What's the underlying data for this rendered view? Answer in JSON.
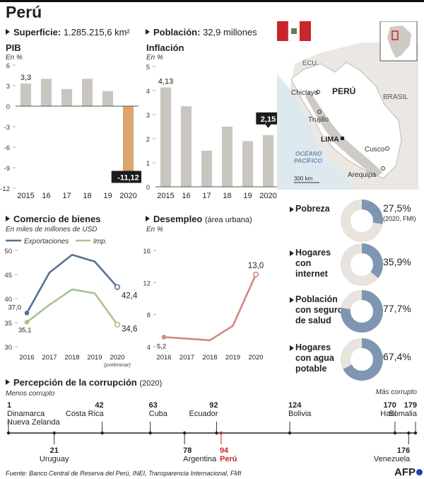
{
  "page": {
    "title": "Perú"
  },
  "stats": {
    "superficie_label": "Superficie:",
    "superficie_value": "1.285.215,6 km²",
    "poblacion_label": "Población:",
    "poblacion_value": "32,9 millones"
  },
  "colors": {
    "gray_bar": "#c9c6c0",
    "highlight_bar": "#d9a66f",
    "exports": "#56718f",
    "imports": "#a8c48f",
    "unemployment": "#d08a7e",
    "donut_fill": "#7f96b2",
    "donut_bg": "#e8e3dd",
    "peru_red": "#c8252c"
  },
  "chart_data": [
    {
      "id": "pib",
      "type": "bar",
      "title": "PIB",
      "unit": "En %",
      "categories": [
        "2015",
        "16",
        "17",
        "18",
        "19",
        "2020"
      ],
      "values": [
        3.3,
        4.0,
        2.5,
        4.0,
        2.2,
        -11.12
      ],
      "data_labels": [
        "3,3",
        "",
        "",
        "",
        "",
        "-11,12"
      ],
      "yticks": [
        "6",
        "3",
        "0",
        "-3",
        "-6",
        "-9",
        "-12"
      ],
      "ylim": [
        -12,
        6
      ]
    },
    {
      "id": "inflacion",
      "type": "bar",
      "title": "Inflación",
      "unit": "En %",
      "categories": [
        "2015",
        "16",
        "17",
        "18",
        "19",
        "2020"
      ],
      "values": [
        4.13,
        3.35,
        1.5,
        2.5,
        1.9,
        2.15
      ],
      "data_labels": [
        "4,13",
        "",
        "",
        "",
        "",
        "2,15"
      ],
      "yticks": [
        "5",
        "4",
        "3",
        "2",
        "1",
        "0"
      ],
      "ylim": [
        0,
        5
      ]
    },
    {
      "id": "comercio",
      "type": "line",
      "title": "Comercio de bienes",
      "unit": "En miles de millones de USD",
      "x": [
        "2016",
        "2017",
        "2018",
        "2019",
        "2020"
      ],
      "x_note": "(preliminar)",
      "series": [
        {
          "name": "Exportaciones",
          "values": [
            37.0,
            45.4,
            49.1,
            47.7,
            42.4
          ],
          "labels": [
            "37,0",
            "",
            "",
            "",
            "42,4"
          ]
        },
        {
          "name": "Imp.",
          "values": [
            35.1,
            38.7,
            41.9,
            41.1,
            34.6
          ],
          "labels": [
            "35,1",
            "",
            "",
            "",
            "34,6"
          ]
        }
      ],
      "yticks": [
        "50",
        "45",
        "40",
        "35",
        "30"
      ],
      "ylim": [
        30,
        50
      ]
    },
    {
      "id": "desempleo",
      "type": "line",
      "title": "Desempleo",
      "title_note": "(área urbana)",
      "unit": "En %",
      "x": [
        "2016",
        "2017",
        "2018",
        "2019",
        "2020"
      ],
      "series": [
        {
          "name": "Desempleo",
          "values": [
            5.2,
            5.0,
            4.8,
            6.6,
            13.0
          ],
          "labels": [
            "5,2",
            "",
            "",
            "",
            "13,0"
          ]
        }
      ],
      "yticks": [
        "16",
        "12",
        "8",
        "4"
      ],
      "ylim": [
        4,
        16
      ]
    }
  ],
  "map": {
    "country_label": "PERÚ",
    "neighbors": [
      "ECU.",
      "BRASIL"
    ],
    "cities": [
      "Chiclayo",
      "Trujillo",
      "LIMA",
      "Cusco",
      "Arequipa"
    ],
    "ocean": [
      "OCÉANO",
      "PACÍFICO"
    ],
    "scale": "300 km"
  },
  "indicators": [
    {
      "label": "Pobreza",
      "value": "27,5%",
      "note": "(2020, FMI)",
      "fraction": 0.275
    },
    {
      "label": "Hogares con internet",
      "value": "35,9%",
      "note": "",
      "fraction": 0.359
    },
    {
      "label": "Población con seguro de salud",
      "value": "77,7%",
      "note": "",
      "fraction": 0.777
    },
    {
      "label": "Hogares con agua potable",
      "value": "67,4%",
      "note": "",
      "fraction": 0.674
    }
  ],
  "corruption": {
    "title": "Percepción de la corrupción",
    "year": "(2020)",
    "less_label": "Menos corrupto",
    "more_label": "Más corrupto",
    "items": [
      {
        "rank": "1",
        "country": "Dinamarca",
        "country2": "Nueva Zelanda",
        "side": "top",
        "align": "left"
      },
      {
        "rank": "21",
        "country": "Uruguay",
        "country2": "",
        "side": "bottom",
        "align": "center"
      },
      {
        "rank": "42",
        "country": "Costa Rica",
        "country2": "",
        "side": "top",
        "align": "right"
      },
      {
        "rank": "63",
        "country": "Cuba",
        "country2": "",
        "side": "top",
        "align": "left"
      },
      {
        "rank": "78",
        "country": "Argentina",
        "country2": "",
        "side": "bottom",
        "align": "left"
      },
      {
        "rank": "92",
        "country": "Ecuador",
        "country2": "",
        "side": "top",
        "align": "right"
      },
      {
        "rank": "94",
        "country": "Perú",
        "country2": "",
        "side": "bottom",
        "align": "left",
        "highlight": true
      },
      {
        "rank": "124",
        "country": "Bolivia",
        "country2": "",
        "side": "top",
        "align": "left"
      },
      {
        "rank": "170",
        "country": "Haití",
        "country2": "",
        "side": "top",
        "align": "right"
      },
      {
        "rank": "176",
        "country": "Venezuela",
        "country2": "",
        "side": "bottom",
        "align": "right"
      },
      {
        "rank": "179",
        "country": "Somalia",
        "country2": "",
        "side": "top",
        "align": "right"
      }
    ]
  },
  "footer": {
    "source": "Fuente: Banco Central de Reserva del Perú, INEI, Transparencia Internacional, FMI",
    "logo": "AFP"
  }
}
